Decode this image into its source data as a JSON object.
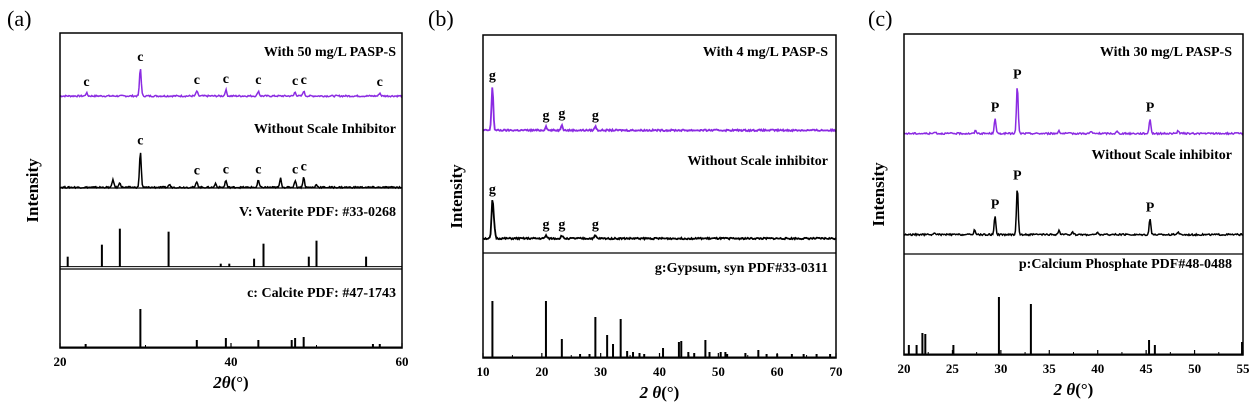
{
  "chart_data": [
    {
      "type": "line",
      "panel": "(a)",
      "xlabel_var": "2θ",
      "xlabel_unit": "(°)",
      "ylabel": "Intensity",
      "xlim": [
        20,
        60
      ],
      "xticks": [
        20,
        40,
        60
      ],
      "sections": [
        {
          "label": "With 50 mg/L PASP-S",
          "kind": "line",
          "color": "#8b2be2",
          "baseline": 0.8,
          "peaks": [
            {
              "x": 23.1,
              "h": 3
            },
            {
              "x": 29.4,
              "h": 28
            },
            {
              "x": 36.0,
              "h": 5
            },
            {
              "x": 39.4,
              "h": 6
            },
            {
              "x": 43.2,
              "h": 5
            },
            {
              "x": 47.5,
              "h": 4
            },
            {
              "x": 48.5,
              "h": 5
            },
            {
              "x": 57.4,
              "h": 3
            }
          ],
          "labels": [
            {
              "x": 23.1,
              "text": "c"
            },
            {
              "x": 29.4,
              "text": "c"
            },
            {
              "x": 36.0,
              "text": "c"
            },
            {
              "x": 39.4,
              "text": "c"
            },
            {
              "x": 43.2,
              "text": "c"
            },
            {
              "x": 47.5,
              "text": "c"
            },
            {
              "x": 48.5,
              "text": "c"
            },
            {
              "x": 57.4,
              "text": "c"
            }
          ]
        },
        {
          "label": "Without Scale Inhibitor",
          "kind": "line",
          "color": "#000000",
          "baseline": 0.51,
          "peaks": [
            {
              "x": 26.2,
              "h": 8
            },
            {
              "x": 27.0,
              "h": 5
            },
            {
              "x": 29.4,
              "h": 36
            },
            {
              "x": 32.8,
              "h": 3
            },
            {
              "x": 36.0,
              "h": 6
            },
            {
              "x": 38.2,
              "h": 4
            },
            {
              "x": 39.4,
              "h": 7
            },
            {
              "x": 43.2,
              "h": 7
            },
            {
              "x": 45.8,
              "h": 9
            },
            {
              "x": 47.5,
              "h": 7
            },
            {
              "x": 48.5,
              "h": 10
            },
            {
              "x": 50.0,
              "h": 3
            }
          ],
          "labels": [
            {
              "x": 29.4,
              "text": "c"
            },
            {
              "x": 36.0,
              "text": "c"
            },
            {
              "x": 39.4,
              "text": "c"
            },
            {
              "x": 43.2,
              "text": "c"
            },
            {
              "x": 47.5,
              "text": "c"
            },
            {
              "x": 48.5,
              "text": "c"
            }
          ]
        },
        {
          "label": "V: Vaterite PDF: #33-0268",
          "kind": "sticks",
          "color": "#000000",
          "baseline": 0.255,
          "sticks": [
            {
              "x": 20.9,
              "h": 10
            },
            {
              "x": 24.9,
              "h": 22
            },
            {
              "x": 27.0,
              "h": 38
            },
            {
              "x": 32.7,
              "h": 35
            },
            {
              "x": 38.8,
              "h": 3
            },
            {
              "x": 39.8,
              "h": 3
            },
            {
              "x": 42.7,
              "h": 8
            },
            {
              "x": 43.8,
              "h": 23
            },
            {
              "x": 49.1,
              "h": 10
            },
            {
              "x": 50.0,
              "h": 26
            },
            {
              "x": 55.8,
              "h": 10
            }
          ]
        },
        {
          "label": "c: Calcite PDF: #47-1743",
          "kind": "sticks",
          "color": "#000000",
          "baseline": 0.0,
          "sticks": [
            {
              "x": 23.0,
              "h": 3
            },
            {
              "x": 29.4,
              "h": 38
            },
            {
              "x": 36.0,
              "h": 7
            },
            {
              "x": 39.4,
              "h": 9
            },
            {
              "x": 43.2,
              "h": 7
            },
            {
              "x": 47.1,
              "h": 7
            },
            {
              "x": 47.5,
              "h": 9
            },
            {
              "x": 48.5,
              "h": 10
            },
            {
              "x": 56.6,
              "h": 3
            },
            {
              "x": 57.4,
              "h": 3
            }
          ]
        }
      ]
    },
    {
      "type": "line",
      "panel": "(b)",
      "xlabel_var": "2 θ",
      "xlabel_unit": "(°)",
      "ylabel": "Intensity",
      "xlim": [
        10,
        70
      ],
      "xticks": [
        10,
        20,
        30,
        40,
        50,
        60,
        70
      ],
      "sections": [
        {
          "label": "With 4 mg/L PASP-S",
          "kind": "line",
          "color": "#8b2be2",
          "baseline": 0.705,
          "peaks": [
            {
              "x": 11.6,
              "h": 44
            },
            {
              "x": 20.7,
              "h": 4
            },
            {
              "x": 23.4,
              "h": 6
            },
            {
              "x": 29.1,
              "h": 4
            }
          ],
          "labels": [
            {
              "x": 11.6,
              "text": "g"
            },
            {
              "x": 20.7,
              "text": "g"
            },
            {
              "x": 23.4,
              "text": "g"
            },
            {
              "x": 29.1,
              "text": "g"
            }
          ]
        },
        {
          "label": "Without Scale inhibitor",
          "kind": "line",
          "color": "#000000",
          "baseline": 0.37,
          "peaks": [
            {
              "x": 11.6,
              "h": 38
            },
            {
              "x": 11.9,
              "h": 12
            },
            {
              "x": 20.7,
              "h": 3
            },
            {
              "x": 23.4,
              "h": 3
            },
            {
              "x": 29.1,
              "h": 3
            }
          ],
          "labels": [
            {
              "x": 11.6,
              "text": "g"
            },
            {
              "x": 20.7,
              "text": "g"
            },
            {
              "x": 23.4,
              "text": "g"
            },
            {
              "x": 29.1,
              "text": "g"
            }
          ]
        },
        {
          "label": "g:Gypsum, syn PDF#33-0311",
          "kind": "sticks",
          "color": "#000000",
          "baseline": 0.0,
          "sticks": [
            {
              "x": 11.6,
              "h": 56
            },
            {
              "x": 20.7,
              "h": 56
            },
            {
              "x": 23.4,
              "h": 18
            },
            {
              "x": 26.5,
              "h": 3
            },
            {
              "x": 28.1,
              "h": 3
            },
            {
              "x": 29.1,
              "h": 40
            },
            {
              "x": 31.1,
              "h": 22
            },
            {
              "x": 32.1,
              "h": 13
            },
            {
              "x": 33.4,
              "h": 38
            },
            {
              "x": 34.5,
              "h": 6
            },
            {
              "x": 35.5,
              "h": 5
            },
            {
              "x": 36.6,
              "h": 4
            },
            {
              "x": 37.4,
              "h": 3
            },
            {
              "x": 40.6,
              "h": 9
            },
            {
              "x": 43.3,
              "h": 15
            },
            {
              "x": 43.7,
              "h": 16
            },
            {
              "x": 44.9,
              "h": 5
            },
            {
              "x": 45.9,
              "h": 4
            },
            {
              "x": 47.8,
              "h": 17
            },
            {
              "x": 48.5,
              "h": 5
            },
            {
              "x": 50.4,
              "h": 5
            },
            {
              "x": 51.2,
              "h": 5
            },
            {
              "x": 51.5,
              "h": 3
            },
            {
              "x": 54.6,
              "h": 4
            },
            {
              "x": 56.8,
              "h": 7
            },
            {
              "x": 58.2,
              "h": 3
            },
            {
              "x": 60.0,
              "h": 3
            },
            {
              "x": 62.5,
              "h": 3
            },
            {
              "x": 64.5,
              "h": 3
            },
            {
              "x": 66.7,
              "h": 3
            },
            {
              "x": 69.0,
              "h": 3
            }
          ]
        }
      ]
    },
    {
      "type": "line",
      "panel": "(c)",
      "xlabel_var": "2 θ",
      "xlabel_unit": "(°)",
      "ylabel": "Intensity",
      "xlim": [
        20,
        55
      ],
      "xticks": [
        20,
        25,
        30,
        35,
        40,
        45,
        50,
        55
      ],
      "sections": [
        {
          "label": "With 30 mg/L PASP-S",
          "kind": "line",
          "color": "#8b2be2",
          "baseline": 0.69,
          "peaks": [
            {
              "x": 23.2,
              "h": 2
            },
            {
              "x": 27.4,
              "h": 3
            },
            {
              "x": 29.4,
              "h": 15
            },
            {
              "x": 31.7,
              "h": 48
            },
            {
              "x": 36.0,
              "h": 3
            },
            {
              "x": 39.3,
              "h": 2
            },
            {
              "x": 42.0,
              "h": 2
            },
            {
              "x": 45.4,
              "h": 15
            },
            {
              "x": 48.3,
              "h": 3
            }
          ],
          "labels": [
            {
              "x": 29.4,
              "text": "P"
            },
            {
              "x": 31.7,
              "text": "P"
            },
            {
              "x": 45.4,
              "text": "P"
            }
          ]
        },
        {
          "label": "Without Scale inhibitor",
          "kind": "line",
          "color": "#000000",
          "baseline": 0.375,
          "peaks": [
            {
              "x": 23.2,
              "h": 2
            },
            {
              "x": 27.3,
              "h": 5
            },
            {
              "x": 29.4,
              "h": 19
            },
            {
              "x": 31.7,
              "h": 48
            },
            {
              "x": 36.0,
              "h": 4
            },
            {
              "x": 37.4,
              "h": 3
            },
            {
              "x": 40.0,
              "h": 2
            },
            {
              "x": 45.4,
              "h": 16
            },
            {
              "x": 48.3,
              "h": 3
            }
          ],
          "labels": [
            {
              "x": 29.4,
              "text": "P"
            },
            {
              "x": 31.7,
              "text": "P"
            },
            {
              "x": 45.4,
              "text": "P"
            }
          ]
        },
        {
          "label": "p:Calcium Phosphate PDF#48-0488",
          "kind": "sticks",
          "color": "#000000",
          "baseline": 0.0,
          "sticks": [
            {
              "x": 20.5,
              "h": 9
            },
            {
              "x": 21.3,
              "h": 9
            },
            {
              "x": 21.9,
              "h": 21
            },
            {
              "x": 22.2,
              "h": 20
            },
            {
              "x": 25.1,
              "h": 9
            },
            {
              "x": 29.8,
              "h": 57
            },
            {
              "x": 33.1,
              "h": 50
            },
            {
              "x": 45.3,
              "h": 14
            },
            {
              "x": 45.9,
              "h": 9
            },
            {
              "x": 54.9,
              "h": 12
            }
          ]
        }
      ]
    }
  ]
}
